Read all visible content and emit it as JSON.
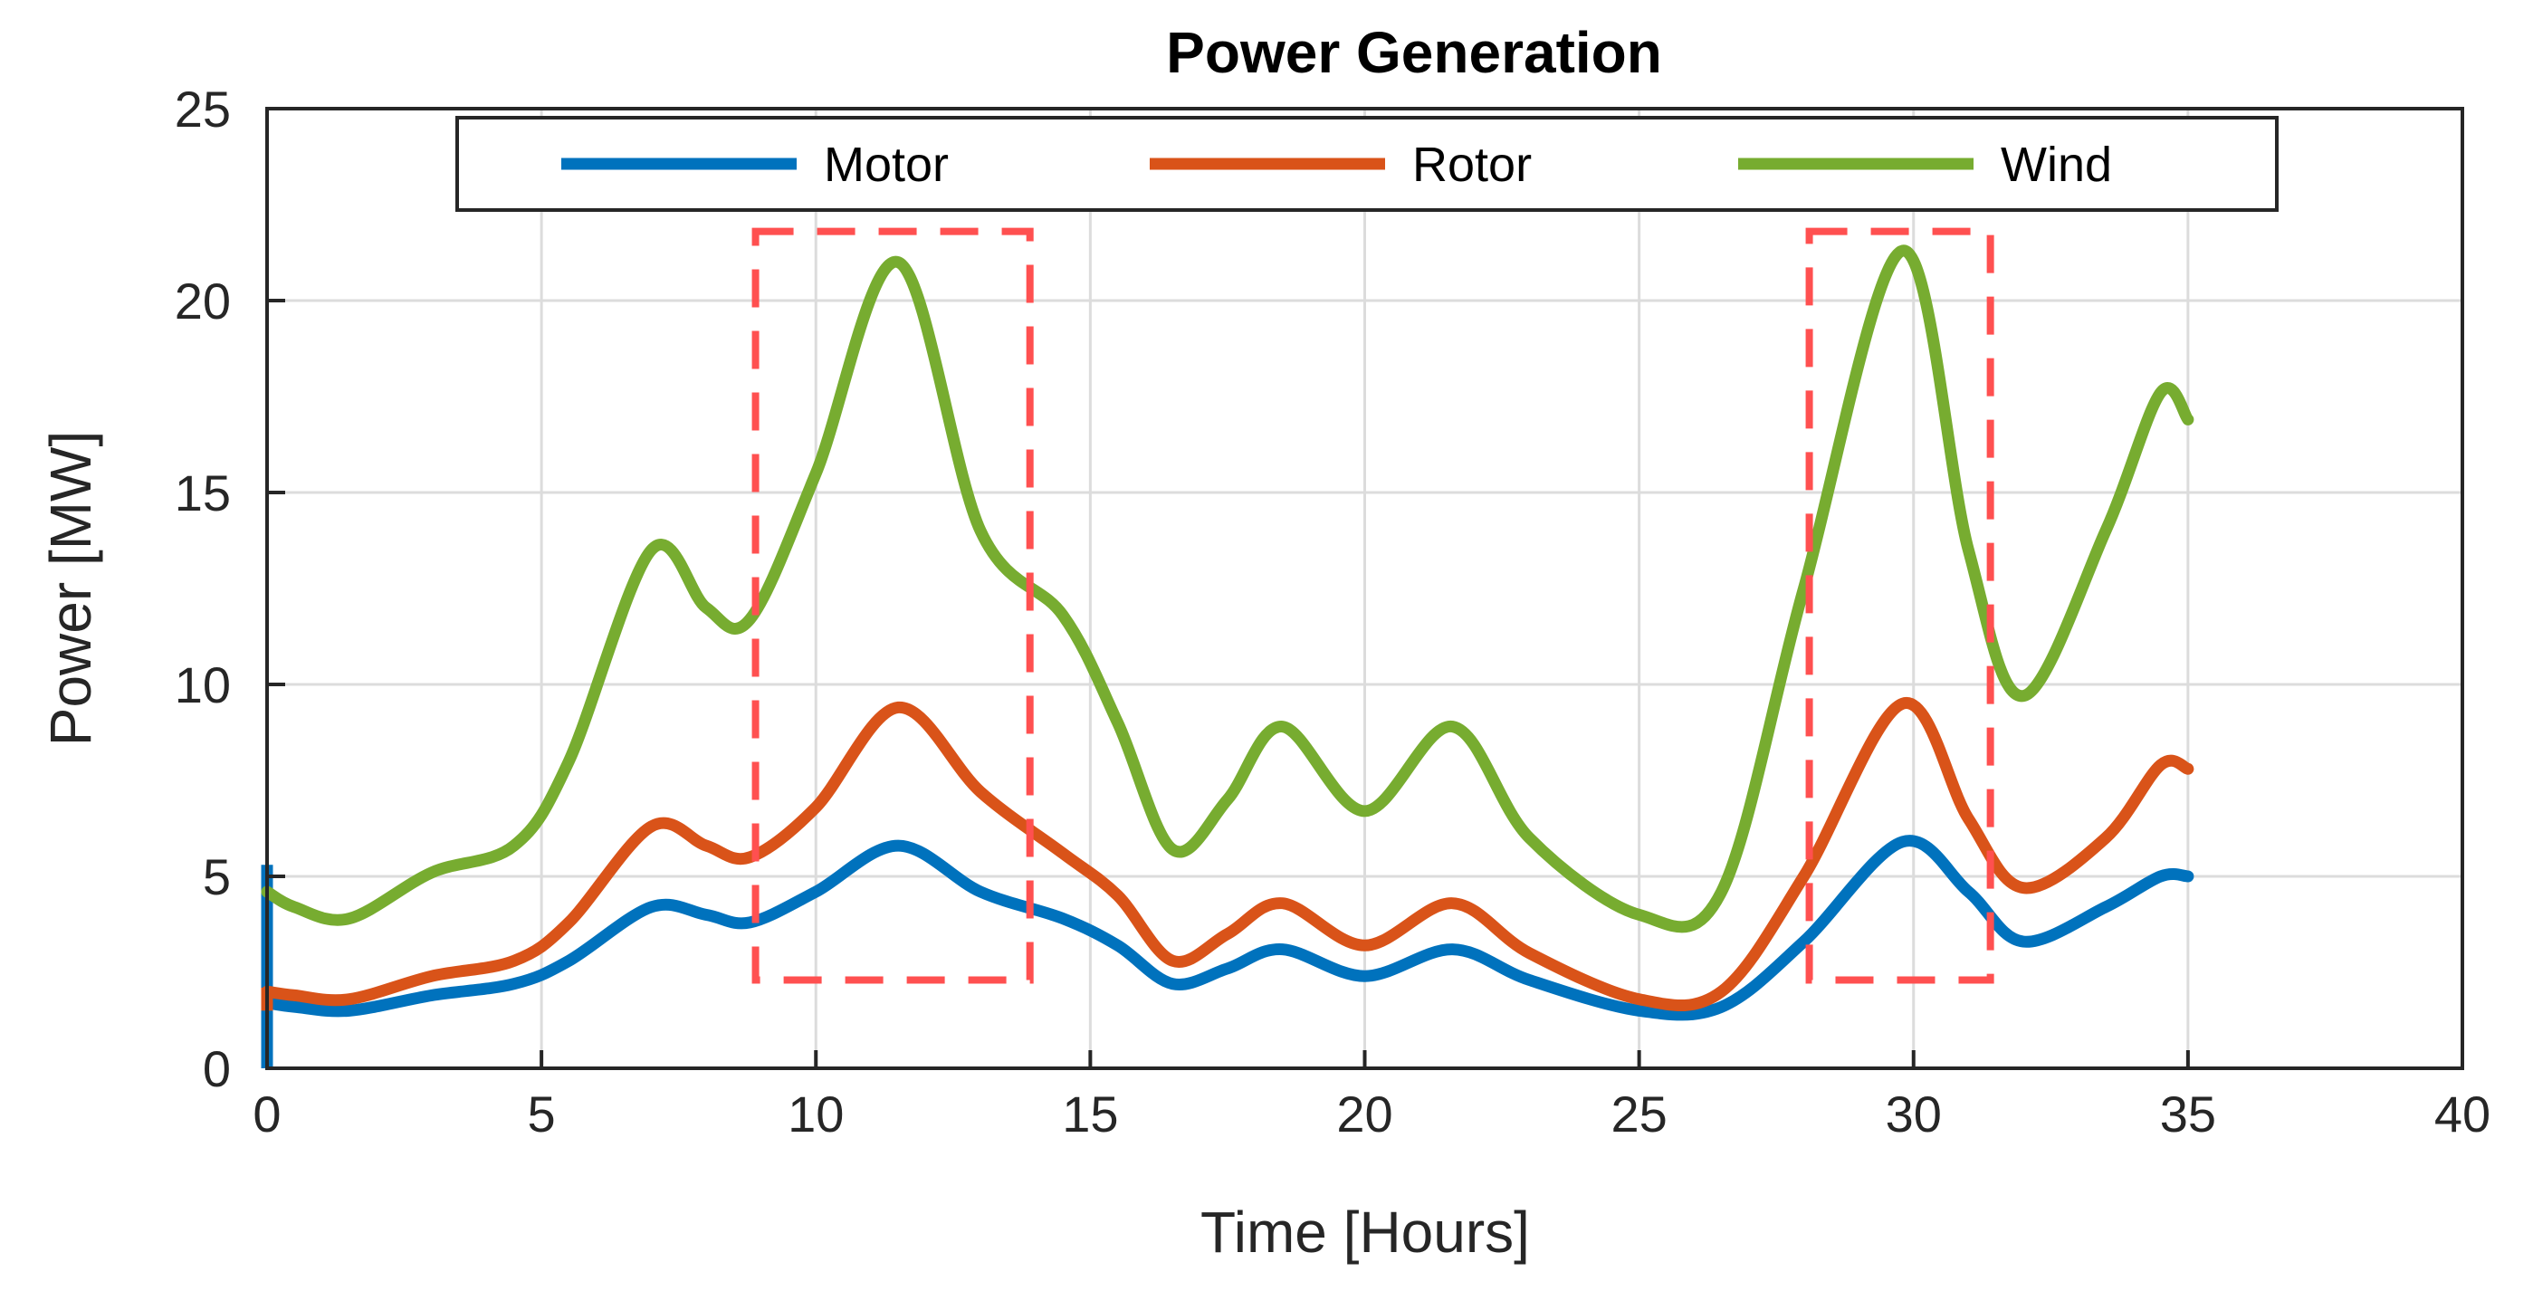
{
  "chart_data": {
    "type": "line",
    "title": "Power Generation",
    "xlabel": "Time [Hours]",
    "ylabel": "Power [MW]",
    "xlim": [
      0,
      40
    ],
    "ylim": [
      0,
      25
    ],
    "xticks": [
      0,
      5,
      10,
      15,
      20,
      25,
      30,
      35,
      40
    ],
    "yticks": [
      0,
      5,
      10,
      15,
      20,
      25
    ],
    "grid": true,
    "legend_position": "top, horizontal",
    "x": [
      0,
      0.5,
      1.5,
      3,
      4.5,
      5.5,
      7,
      8,
      8.8,
      10,
      11.5,
      13,
      14.5,
      15.5,
      16.5,
      17.5,
      18.5,
      20,
      21.6,
      23,
      25,
      26.5,
      28,
      29.8,
      31,
      32,
      33.5,
      34.5,
      35
    ],
    "series": [
      {
        "name": "Motor",
        "color": "#0072BD",
        "values": [
          1.7,
          1.6,
          1.5,
          1.9,
          2.2,
          2.8,
          4.2,
          4.0,
          3.8,
          4.6,
          5.8,
          4.6,
          3.9,
          3.2,
          2.2,
          2.6,
          3.1,
          2.4,
          3.1,
          2.3,
          1.5,
          1.6,
          3.3,
          5.9,
          4.6,
          3.3,
          4.2,
          5.0,
          5.0
        ],
        "spike": [
          0,
          5.3
        ]
      },
      {
        "name": "Rotor",
        "color": "#D95319",
        "values": [
          2.0,
          1.9,
          1.8,
          2.4,
          2.8,
          3.8,
          6.3,
          5.8,
          5.5,
          6.8,
          9.4,
          7.2,
          5.6,
          4.5,
          2.8,
          3.5,
          4.3,
          3.2,
          4.3,
          3.0,
          1.8,
          2.0,
          5.0,
          9.5,
          6.5,
          4.7,
          6.0,
          7.9,
          7.8
        ],
        "spike": [
          1.5,
          2.1
        ]
      },
      {
        "name": "Wind",
        "color": "#77AC30",
        "values": [
          4.6,
          4.2,
          3.9,
          5.1,
          5.8,
          8.0,
          13.5,
          12.0,
          11.7,
          15.5,
          21.0,
          14.0,
          11.8,
          9.0,
          5.7,
          7.0,
          8.9,
          6.7,
          8.9,
          6.0,
          4.0,
          4.6,
          12.5,
          21.3,
          13.5,
          9.7,
          14.0,
          17.6,
          16.9
        ]
      }
    ],
    "highlight_boxes": [
      {
        "x": [
          8.9,
          13.9
        ],
        "y": [
          2.3,
          21.8
        ]
      },
      {
        "x": [
          28.1,
          31.4
        ],
        "y": [
          2.3,
          21.8
        ]
      }
    ]
  }
}
